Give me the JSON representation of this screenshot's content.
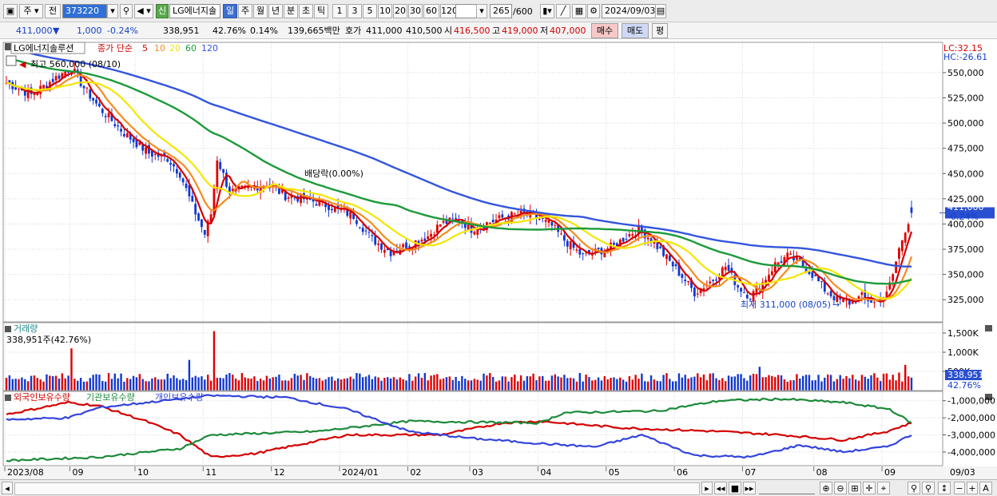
{
  "toolbar": {
    "type_selector": "주",
    "prev_label": "전",
    "stock_code": "373220",
    "credit_badge": "신",
    "stock_name": "LG에너지솔",
    "period_tabs": [
      "일",
      "주",
      "월",
      "년",
      "분",
      "초",
      "틱"
    ],
    "active_period": "일",
    "interval_tabs": [
      "1",
      "3",
      "5",
      "10",
      "20",
      "30",
      "60",
      "120"
    ],
    "count_value": "265",
    "count_max": "/600",
    "date_value": "2024/09/03"
  },
  "quote": {
    "price": "411,000",
    "change": "1,000",
    "change_pct": "-0.24%",
    "volume": "338,951",
    "volume_ratio": "42.76%",
    "turnover": "0.14%",
    "amount": "139,665백만",
    "bid_label": "호가",
    "bid1": "411,000",
    "bid2": "410,500",
    "open_label": "시",
    "open": "416,500",
    "high_label": "고",
    "high": "419,000",
    "low_label": "저",
    "low": "407,000",
    "buy_label": "매수",
    "sell_label": "매도",
    "eval_label": "평"
  },
  "price_pane": {
    "legend_name": "LG에너지솔루션",
    "legend_ma_label": "종가 단순",
    "lc_label": "LC:32.15",
    "hc_label": "HC:-26.61",
    "current_price_tag": "411,000",
    "current_change_tag": "-0.24%",
    "high_annotation": "최고 560,000 (08/10)",
    "low_annotation": "최저 311,000 (08/05)",
    "dividend_annotation": "배당락(0.00%)"
  },
  "volume_pane": {
    "title": "거래량",
    "value_label": "338,951주(42.76%)",
    "current_tag": "338,951",
    "current_pct_tag": "42.76%"
  },
  "holdings_pane": {
    "foreign_label": "외국인보유수량",
    "institution_label": "기관보유수량",
    "individual_label": "개인보유수량"
  },
  "chart_data": [
    {
      "type": "candlestick",
      "series": [
        {
          "name": "5",
          "color": "#d40000"
        },
        {
          "name": "10",
          "color": "#f58c1e"
        },
        {
          "name": "20",
          "color": "#f3e600"
        },
        {
          "name": "60",
          "color": "#1c9a3a"
        },
        {
          "name": "120",
          "color": "#3355dd"
        }
      ],
      "x_ticks": [
        "2023/08",
        "09",
        "10",
        "11",
        "12",
        "2024/01",
        "02",
        "03",
        "04",
        "05",
        "06",
        "07",
        "08",
        "09",
        "09/03"
      ],
      "y_ticks": [
        325000,
        350000,
        375000,
        400000,
        425000,
        450000,
        475000,
        500000,
        525000,
        550000
      ],
      "ylim": [
        303000,
        580000
      ],
      "close_trend": [
        [
          0,
          540000
        ],
        [
          8,
          528000
        ],
        [
          16,
          545000
        ],
        [
          21,
          555000
        ],
        [
          25,
          535000
        ],
        [
          30,
          515000
        ],
        [
          38,
          490000
        ],
        [
          46,
          470000
        ],
        [
          52,
          465000
        ],
        [
          56,
          450000
        ],
        [
          60,
          418000
        ],
        [
          64,
          390000
        ],
        [
          66,
          410000
        ],
        [
          68,
          465000
        ],
        [
          72,
          432000
        ],
        [
          78,
          435000
        ],
        [
          84,
          440000
        ],
        [
          90,
          428000
        ],
        [
          96,
          425000
        ],
        [
          104,
          418000
        ],
        [
          112,
          408000
        ],
        [
          118,
          385000
        ],
        [
          124,
          372000
        ],
        [
          130,
          380000
        ],
        [
          136,
          388000
        ],
        [
          140,
          400000
        ],
        [
          146,
          405000
        ],
        [
          150,
          395000
        ],
        [
          156,
          402000
        ],
        [
          162,
          408000
        ],
        [
          168,
          410000
        ],
        [
          172,
          405000
        ],
        [
          176,
          398000
        ],
        [
          180,
          384000
        ],
        [
          186,
          368000
        ],
        [
          190,
          372000
        ],
        [
          196,
          378000
        ],
        [
          200,
          388000
        ],
        [
          204,
          395000
        ],
        [
          208,
          385000
        ],
        [
          212,
          370000
        ],
        [
          218,
          348000
        ],
        [
          222,
          332000
        ],
        [
          228,
          345000
        ],
        [
          232,
          358000
        ],
        [
          236,
          338000
        ],
        [
          240,
          328000
        ],
        [
          244,
          342000
        ],
        [
          248,
          360000
        ],
        [
          252,
          368000
        ],
        [
          256,
          362000
        ],
        [
          260,
          350000
        ],
        [
          264,
          335000
        ],
        [
          268,
          325000
        ],
        [
          272,
          322000
        ],
        [
          276,
          328000
        ],
        [
          280,
          322000
        ],
        [
          284,
          330000
        ],
        [
          286,
          350000
        ],
        [
          288,
          375000
        ],
        [
          290,
          395000
        ],
        [
          292,
          411000
        ]
      ],
      "ma_levels": {
        "ma60_end": 345000,
        "ma120_end": 362000
      }
    },
    {
      "type": "bar",
      "title": "거래량",
      "y_ticks": [
        500000,
        1000000,
        1500000
      ],
      "ylim": [
        0,
        1750000
      ],
      "last_value": 338951,
      "peaks": [
        [
          21,
          1100000
        ],
        [
          59,
          800000
        ],
        [
          67,
          1550000
        ],
        [
          243,
          620000
        ],
        [
          288,
          470000
        ],
        [
          290,
          670000
        ]
      ]
    },
    {
      "type": "line",
      "series": [
        {
          "name": "외국인보유수량",
          "color": "#d40000"
        },
        {
          "name": "기관보유수량",
          "color": "#1c8a3a"
        },
        {
          "name": "개인보유수량",
          "color": "#3344dd"
        }
      ],
      "y_ticks": [
        -1000000,
        -2000000,
        -3000000,
        -4000000
      ],
      "ylim": [
        -4800000,
        -500000
      ]
    }
  ]
}
